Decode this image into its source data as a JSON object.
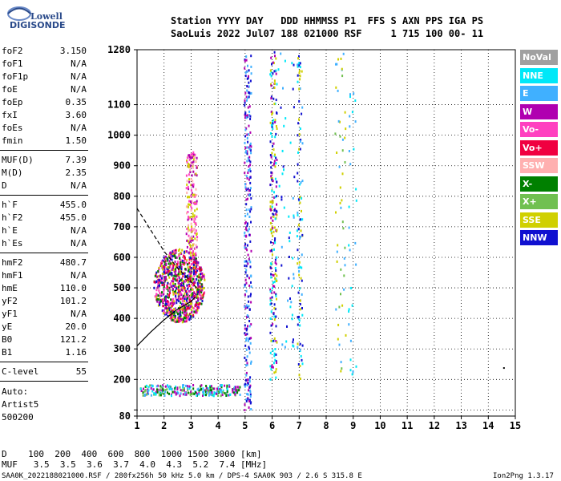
{
  "logo": {
    "line1": "Lowell",
    "line2": "DIGISONDE"
  },
  "header": {
    "row1": "Station YYYY DAY   DDD HHMMSS P1  FFS S AXN PPS IGA PS",
    "row2": "SaoLuis 2022 Jul07 188 021000 RSF     1 715 100 00- 11"
  },
  "params": [
    {
      "name": "foF2",
      "value": "3.150"
    },
    {
      "name": "foF1",
      "value": "N/A"
    },
    {
      "name": "foF1p",
      "value": "N/A"
    },
    {
      "name": "foE",
      "value": "N/A"
    },
    {
      "name": "foEp",
      "value": "0.35"
    },
    {
      "name": "fxI",
      "value": "3.60"
    },
    {
      "name": "foEs",
      "value": "N/A"
    },
    {
      "name": "fmin",
      "value": "1.50"
    },
    {
      "name": "MUF(D)",
      "value": "7.39"
    },
    {
      "name": "M(D)",
      "value": "2.35"
    },
    {
      "name": "D",
      "value": "N/A"
    },
    {
      "name": "h`F",
      "value": "455.0"
    },
    {
      "name": "h`F2",
      "value": "455.0"
    },
    {
      "name": "h`E",
      "value": "N/A"
    },
    {
      "name": "h`Es",
      "value": "N/A"
    },
    {
      "name": "hmF2",
      "value": "480.7"
    },
    {
      "name": "hmF1",
      "value": "N/A"
    },
    {
      "name": "hmE",
      "value": "110.0"
    },
    {
      "name": "yF2",
      "value": "101.2"
    },
    {
      "name": "yF1",
      "value": "N/A"
    },
    {
      "name": "yE",
      "value": "20.0"
    },
    {
      "name": "B0",
      "value": "121.2"
    },
    {
      "name": "B1",
      "value": "1.16"
    },
    {
      "name": "C-level",
      "value": "55"
    }
  ],
  "autoscaling": {
    "line1": "Auto:",
    "line2": "Artist5",
    "line3": "500200"
  },
  "legend": [
    {
      "label": "NoVal",
      "color": "#a0a0a0"
    },
    {
      "label": "NNE",
      "color": "#00e8f8"
    },
    {
      "label": "E",
      "color": "#40b0ff"
    },
    {
      "label": "W",
      "color": "#b000b0"
    },
    {
      "label": "Vo-",
      "color": "#ff40c0"
    },
    {
      "label": "Vo+",
      "color": "#f00040"
    },
    {
      "label": "SSW",
      "color": "#ffb0b0"
    },
    {
      "label": "X-",
      "color": "#008000"
    },
    {
      "label": "X+",
      "color": "#70c050"
    },
    {
      "label": "SSE",
      "color": "#d0d000"
    },
    {
      "label": "NNW",
      "color": "#1010d0"
    }
  ],
  "footer": {
    "d_row": "D    100  200  400  600  800  1000 1500 3000 [km]",
    "muf_row": "MUF   3.5  3.5  3.6  3.7  4.0  4.3  5.2  7.4 [MHz]",
    "file_row": "SAA0K_2022188021000.RSF / 280fx256h 50 kHz 5.0 km / DPS-4 SAA0K 903 / 2.6 S 315.8 E",
    "version": "Ion2Png 1.3.17"
  },
  "chart_data": {
    "type": "scatter",
    "xlim": [
      1,
      15
    ],
    "ylim": [
      80,
      1280
    ],
    "x_ticks": [
      "1",
      "2",
      "3",
      "4",
      "5",
      "6",
      "7",
      "8",
      "9",
      "10",
      "11",
      "12",
      "13",
      "14",
      "15"
    ],
    "y_ticks": [
      {
        "value": 80,
        "label": "80"
      },
      {
        "value": 100,
        "label": ""
      },
      {
        "value": 200,
        "label": "200"
      },
      {
        "value": 300,
        "label": "300"
      },
      {
        "value": 400,
        "label": "400"
      },
      {
        "value": 500,
        "label": "500"
      },
      {
        "value": 600,
        "label": "600"
      },
      {
        "value": 700,
        "label": "700"
      },
      {
        "value": 800,
        "label": "800"
      },
      {
        "value": 900,
        "label": "900"
      },
      {
        "value": 1000,
        "label": "1000"
      },
      {
        "value": 1100,
        "label": "1100"
      },
      {
        "value": 1280,
        "label": "1280"
      }
    ],
    "grid": true,
    "clusters": [
      {
        "name": "F-layer trace",
        "color_mix": [
          "#b000b0",
          "#1010d0",
          "#f00040",
          "#ff40c0",
          "#d0d000",
          "#008000"
        ],
        "x": [
          1.5,
          3.6
        ],
        "y": [
          380,
          650
        ],
        "count": 900
      },
      {
        "name": "F-layer trace upper",
        "color_mix": [
          "#ff40c0",
          "#ffb0b0",
          "#b000b0",
          "#d0d000"
        ],
        "x": [
          2.8,
          3.2
        ],
        "y": [
          600,
          950
        ],
        "count": 180
      },
      {
        "name": "E trace",
        "color_mix": [
          "#40b0ff",
          "#00e8f8",
          "#70c050",
          "#008000",
          "#b000b0"
        ],
        "x": [
          1.1,
          4.8
        ],
        "y": [
          150,
          185
        ],
        "count": 260
      },
      {
        "name": "5MHz interference",
        "color_mix": [
          "#1010d0",
          "#b000b0",
          "#40b0ff"
        ],
        "x": [
          4.95,
          5.2
        ],
        "y": [
          100,
          1280
        ],
        "count": 260
      },
      {
        "name": "6MHz interference",
        "color_mix": [
          "#1010d0",
          "#b000b0",
          "#00e8f8",
          "#d0d000"
        ],
        "x": [
          5.9,
          6.15
        ],
        "y": [
          200,
          1280
        ],
        "count": 220
      },
      {
        "name": "7MHz interference",
        "color_mix": [
          "#1010d0",
          "#00e8f8",
          "#40b0ff",
          "#d0d000"
        ],
        "x": [
          6.9,
          7.1
        ],
        "y": [
          200,
          1280
        ],
        "count": 100
      },
      {
        "name": "8.5MHz interference",
        "color_mix": [
          "#40b0ff",
          "#70c050",
          "#d0d000"
        ],
        "x": [
          8.3,
          8.7
        ],
        "y": [
          200,
          1280
        ],
        "count": 50
      },
      {
        "name": "9MHz interference",
        "color_mix": [
          "#00e8f8",
          "#40b0ff"
        ],
        "x": [
          8.8,
          9.1
        ],
        "y": [
          200,
          1200
        ],
        "count": 30
      },
      {
        "name": "6.5MHz sparse",
        "color_mix": [
          "#00e8f8",
          "#40b0ff",
          "#1010d0"
        ],
        "x": [
          6.2,
          6.8
        ],
        "y": [
          300,
          1280
        ],
        "count": 50
      }
    ],
    "isolated_points": [
      {
        "x": 14.55,
        "y": 240,
        "color": "#000000"
      }
    ],
    "profile_curve": [
      [
        1.0,
        310
      ],
      [
        1.5,
        355
      ],
      [
        2.0,
        395
      ],
      [
        2.5,
        430
      ],
      [
        3.0,
        455
      ],
      [
        3.15,
        470
      ]
    ],
    "dashed_curve": [
      [
        1.0,
        760
      ],
      [
        1.5,
        690
      ],
      [
        2.0,
        620
      ],
      [
        2.5,
        565
      ],
      [
        3.0,
        520
      ],
      [
        3.2,
        500
      ]
    ]
  }
}
